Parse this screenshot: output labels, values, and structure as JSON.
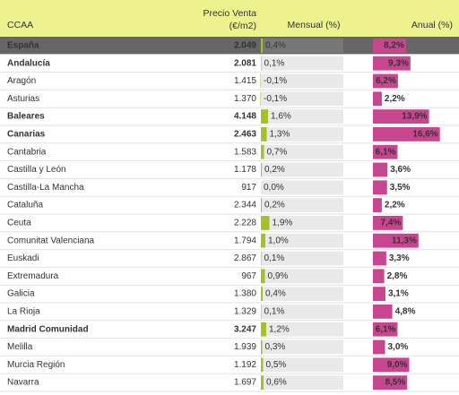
{
  "header": {
    "ccaa": "CCAA",
    "precio": [
      "Precio Venta",
      "(€/m2)"
    ],
    "mensual": "Mensual (%)",
    "anual": "Anual (%)"
  },
  "table": {
    "rows": [
      {
        "ccaa": "España",
        "precio": "2.049",
        "mensual": {
          "value": 0.4,
          "label": "0,4%"
        },
        "anual": {
          "value": 8.2,
          "label": "8,2%"
        },
        "bold": true,
        "highlight": true
      },
      {
        "ccaa": "Andalucía",
        "precio": "2.081",
        "mensual": {
          "value": 0.1,
          "label": "0,1%"
        },
        "anual": {
          "value": 9.3,
          "label": "9,3%"
        },
        "bold": true
      },
      {
        "ccaa": "Aragón",
        "precio": "1.415",
        "mensual": {
          "value": -0.1,
          "label": "-0,1%"
        },
        "anual": {
          "value": 6.2,
          "label": "6,2%"
        }
      },
      {
        "ccaa": "Asturias",
        "precio": "1.370",
        "mensual": {
          "value": -0.1,
          "label": "-0,1%"
        },
        "anual": {
          "value": 2.2,
          "label": "2,2%"
        }
      },
      {
        "ccaa": "Baleares",
        "precio": "4.148",
        "mensual": {
          "value": 1.6,
          "label": "1,6%"
        },
        "anual": {
          "value": 13.9,
          "label": "13,9%"
        },
        "bold": true
      },
      {
        "ccaa": "Canarias",
        "precio": "2.463",
        "mensual": {
          "value": 1.3,
          "label": "1,3%"
        },
        "anual": {
          "value": 16.6,
          "label": "16,6%"
        },
        "bold": true
      },
      {
        "ccaa": "Cantabria",
        "precio": "1.583",
        "mensual": {
          "value": 0.7,
          "label": "0,7%"
        },
        "anual": {
          "value": 6.1,
          "label": "6,1%"
        }
      },
      {
        "ccaa": "Castilla y León",
        "precio": "1.178",
        "mensual": {
          "value": 0.2,
          "label": "0,2%"
        },
        "anual": {
          "value": 3.6,
          "label": "3,6%"
        }
      },
      {
        "ccaa": "Castilla-La Mancha",
        "precio": "917",
        "mensual": {
          "value": 0.0,
          "label": "0,0%"
        },
        "anual": {
          "value": 3.5,
          "label": "3,5%"
        }
      },
      {
        "ccaa": "Cataluña",
        "precio": "2.344",
        "mensual": {
          "value": 0.2,
          "label": "0,2%"
        },
        "anual": {
          "value": 2.2,
          "label": "2,2%"
        }
      },
      {
        "ccaa": "Ceuta",
        "precio": "2.228",
        "mensual": {
          "value": 1.9,
          "label": "1,9%"
        },
        "anual": {
          "value": 7.4,
          "label": "7,4%"
        }
      },
      {
        "ccaa": "Comunitat Valenciana",
        "precio": "1.794",
        "mensual": {
          "value": 1.0,
          "label": "1,0%"
        },
        "anual": {
          "value": 11.3,
          "label": "11,3%"
        }
      },
      {
        "ccaa": "Euskadi",
        "precio": "2.867",
        "mensual": {
          "value": 0.1,
          "label": "0,1%"
        },
        "anual": {
          "value": 3.3,
          "label": "3,3%"
        }
      },
      {
        "ccaa": "Extremadura",
        "precio": "967",
        "mensual": {
          "value": 0.9,
          "label": "0,9%"
        },
        "anual": {
          "value": 2.8,
          "label": "2,8%"
        }
      },
      {
        "ccaa": "Galicia",
        "precio": "1.380",
        "mensual": {
          "value": 0.4,
          "label": "0,4%"
        },
        "anual": {
          "value": 3.1,
          "label": "3,1%"
        }
      },
      {
        "ccaa": "La Rioja",
        "precio": "1.329",
        "mensual": {
          "value": 0.1,
          "label": "0,1%"
        },
        "anual": {
          "value": 4.8,
          "label": "4,8%"
        }
      },
      {
        "ccaa": "Madrid Comunidad",
        "precio": "3.247",
        "mensual": {
          "value": 1.2,
          "label": "1,2%"
        },
        "anual": {
          "value": 6.1,
          "label": "6,1%"
        },
        "bold": true
      },
      {
        "ccaa": "Melilla",
        "precio": "1.939",
        "mensual": {
          "value": 0.3,
          "label": "0,3%"
        },
        "anual": {
          "value": 3.0,
          "label": "3,0%"
        }
      },
      {
        "ccaa": "Murcia Región",
        "precio": "1.192",
        "mensual": {
          "value": 0.5,
          "label": "0,5%"
        },
        "anual": {
          "value": 9.0,
          "label": "9,0%"
        }
      },
      {
        "ccaa": "Navarra",
        "precio": "1.697",
        "mensual": {
          "value": 0.6,
          "label": "0,6%"
        },
        "anual": {
          "value": 8.5,
          "label": "8,5%"
        }
      }
    ]
  }
}
